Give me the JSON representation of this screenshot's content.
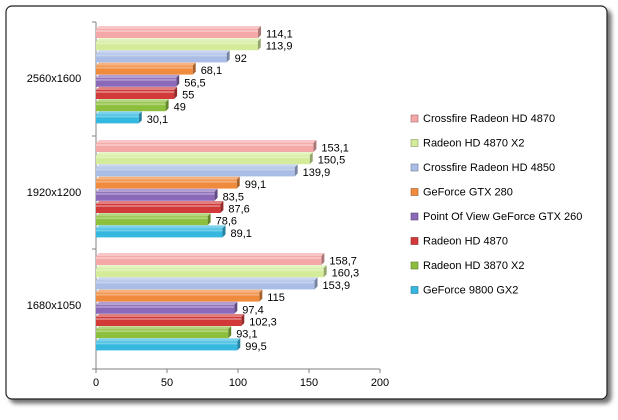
{
  "chart_data": {
    "type": "bar",
    "orientation": "horizontal",
    "categories": [
      "2560x1600",
      "1920x1200",
      "1680x1050"
    ],
    "xlim": [
      0,
      200
    ],
    "xticks": [
      0,
      50,
      100,
      150,
      200
    ],
    "grid": false,
    "legend_position": "right",
    "series": [
      {
        "name": "Crossfire Radeon HD 4870",
        "color": "#f4a8a8",
        "values": [
          114.1,
          153.1,
          158.7
        ],
        "labels": [
          "114,1",
          "153,1",
          "158,7"
        ]
      },
      {
        "name": "Radeon HD 4870 X2",
        "color": "#d4ec9a",
        "values": [
          113.9,
          150.5,
          160.3
        ],
        "labels": [
          "113,9",
          "150,5",
          "160,3"
        ]
      },
      {
        "name": "Crossfire Radeon HD 4850",
        "color": "#a9bde6",
        "values": [
          92,
          139.9,
          153.9
        ],
        "labels": [
          "92",
          "139,9",
          "153,9"
        ]
      },
      {
        "name": "GeForce GTX 280",
        "color": "#f08a3c",
        "values": [
          68.1,
          99.1,
          115
        ],
        "labels": [
          "68,1",
          "99,1",
          "115"
        ]
      },
      {
        "name": "Point Of View GeForce GTX 260",
        "color": "#8a6ab8",
        "values": [
          56.5,
          83.5,
          97.4
        ],
        "labels": [
          "56,5",
          "83,5",
          "97,4"
        ]
      },
      {
        "name": "Radeon HD 4870",
        "color": "#d23a3a",
        "values": [
          55,
          87.6,
          102.3
        ],
        "labels": [
          "55",
          "87,6",
          "102,3"
        ]
      },
      {
        "name": "Radeon HD 3870 X2",
        "color": "#8cbf3c",
        "values": [
          49,
          78.6,
          93.1
        ],
        "labels": [
          "49",
          "78,6",
          "93,1"
        ]
      },
      {
        "name": "GeForce 9800 GX2",
        "color": "#35b8e0",
        "values": [
          30.1,
          89.1,
          99.5
        ],
        "labels": [
          "30,1",
          "89,1",
          "99,5"
        ]
      }
    ]
  }
}
